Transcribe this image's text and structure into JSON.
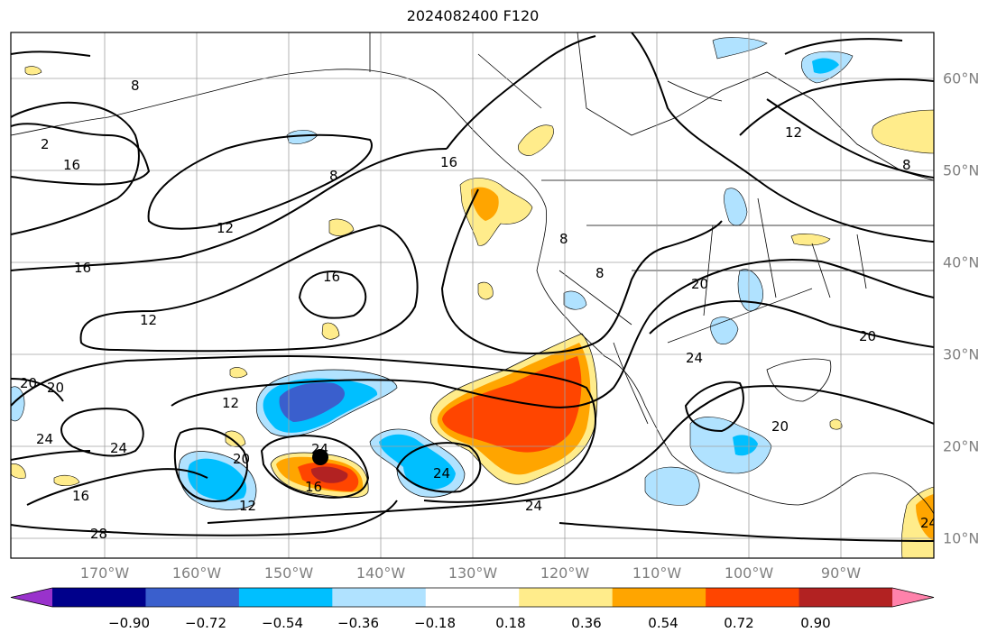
{
  "title": "2024082400 F120",
  "lon_labels": [
    "170°W",
    "160°W",
    "150°W",
    "140°W",
    "130°W",
    "120°W",
    "110°W",
    "100°W",
    "90°W"
  ],
  "lat_labels": [
    "60°N",
    "50°N",
    "40°N",
    "30°N",
    "20°N",
    "10°N"
  ],
  "colorbar": {
    "ticks": [
      "−0.90",
      "−0.72",
      "−0.54",
      "−0.36",
      "−0.18",
      "0.18",
      "0.36",
      "0.54",
      "0.72",
      "0.90"
    ],
    "colors": [
      "#9932cc",
      "#00008b",
      "#3a5fcd",
      "#00bfff",
      "#b0e2ff",
      "#ffffff",
      "#ffec8b",
      "#ffa500",
      "#ff4500",
      "#b22222",
      "#ff82ab"
    ]
  },
  "contour_labels": [
    "2",
    "8",
    "16",
    "8",
    "12",
    "16",
    "16",
    "12",
    "12",
    "16",
    "16",
    "8",
    "8",
    "12",
    "8",
    "20",
    "20",
    "20",
    "24",
    "24",
    "20",
    "24",
    "20",
    "16",
    "12",
    "28",
    "24",
    "24",
    "24",
    "20",
    "24",
    "24"
  ],
  "storm_marker": "black-dot"
}
